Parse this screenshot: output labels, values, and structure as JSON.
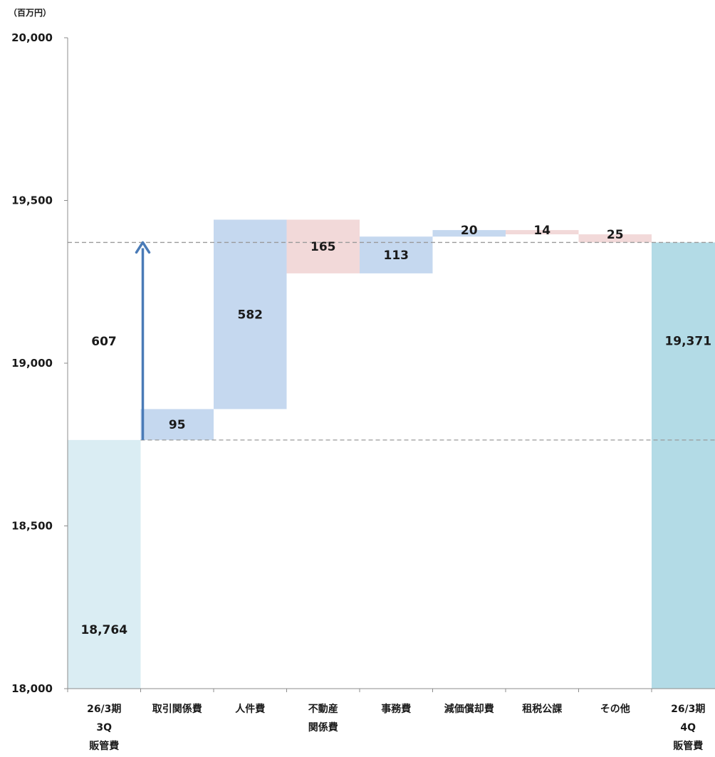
{
  "chart_data": {
    "type": "bar",
    "subtype": "waterfall",
    "unit_label": "（百万円）",
    "ylim": [
      18000,
      20000
    ],
    "yticks": [
      18000,
      18500,
      19000,
      19500,
      20000
    ],
    "ytick_labels": [
      "18,000",
      "18,500",
      "19,000",
      "19,500",
      "20,000"
    ],
    "categories": [
      [
        "26/3期",
        "3Q",
        "販管費"
      ],
      [
        "取引関係費"
      ],
      [
        "人件費"
      ],
      [
        "不動産",
        "関係費"
      ],
      [
        "事務費"
      ],
      [
        "減価償却費"
      ],
      [
        "租税公課"
      ],
      [
        "その他"
      ],
      [
        "26/3期",
        "4Q",
        "販管費"
      ]
    ],
    "bars": [
      {
        "kind": "total",
        "start": 18000,
        "end": 18764,
        "label": "18,764",
        "color": "#daedf3"
      },
      {
        "kind": "increase",
        "start": 18764,
        "end": 18859,
        "label": "95",
        "color": "#c5d8ef"
      },
      {
        "kind": "increase",
        "start": 18859,
        "end": 19441,
        "label": "582",
        "color": "#c5d8ef"
      },
      {
        "kind": "decrease",
        "start": 19441,
        "end": 19276,
        "label": "165",
        "color": "#f2d9d9"
      },
      {
        "kind": "increase",
        "start": 19276,
        "end": 19389,
        "label": "113",
        "color": "#c5d8ef"
      },
      {
        "kind": "increase",
        "start": 19389,
        "end": 19409,
        "label": "20",
        "color": "#c5d8ef"
      },
      {
        "kind": "decrease",
        "start": 19409,
        "end": 19396,
        "label": "14",
        "color": "#f2d9d9"
      },
      {
        "kind": "decrease",
        "start": 19396,
        "end": 19371,
        "label": "25",
        "color": "#f2d9d9"
      },
      {
        "kind": "total",
        "start": 18000,
        "end": 19371,
        "label": "19,371",
        "color": "#b3dbe6"
      }
    ],
    "reference_lines": [
      18764,
      19371
    ],
    "change_annotation": {
      "from": 18764,
      "to": 19371,
      "label": "607",
      "color": "#4a7bb7"
    },
    "grid": false,
    "legend": "none"
  }
}
